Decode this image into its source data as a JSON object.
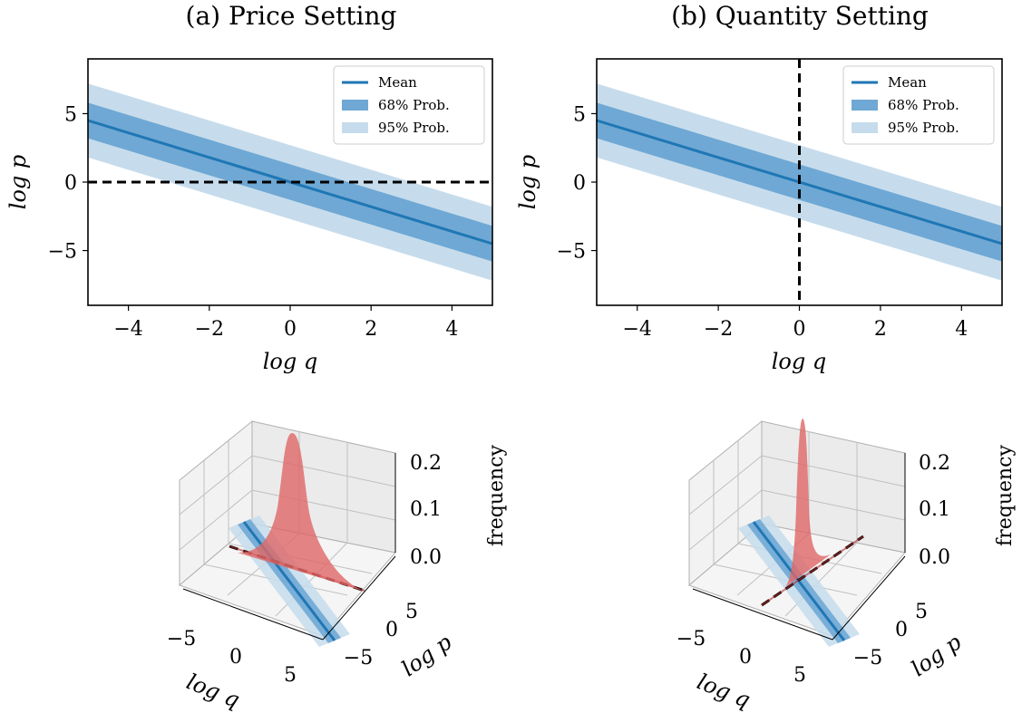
{
  "colors": {
    "mean": "#1f77b4",
    "band68": "#6fa8d4",
    "band95": "#c6dcec",
    "dashed": "#000000",
    "density": "#e06666",
    "pane": "#f2f2f2",
    "grid": "#b0b0b0"
  },
  "chart_data": [
    {
      "type": "area",
      "panel": "a",
      "title": "(a) Price Setting",
      "xlabel": "log q",
      "ylabel": "log p",
      "xlim": [
        -5,
        5
      ],
      "ylim": [
        -9,
        9
      ],
      "xticks": [
        -4,
        -2,
        0,
        2,
        4
      ],
      "yticks": [
        -5,
        0,
        5
      ],
      "tick_labels_x": [
        "−4",
        "−2",
        "0",
        "2",
        "4"
      ],
      "tick_labels_y": [
        "−5",
        "0",
        "5"
      ],
      "grid": false,
      "legend_position": "top-right",
      "series": [
        {
          "name": "Mean",
          "kind": "line",
          "x": [
            -5,
            5
          ],
          "y": [
            4.5,
            -4.5
          ]
        },
        {
          "name": "68% Prob.",
          "kind": "band",
          "x": [
            -5,
            5
          ],
          "lower": [
            3.2,
            -5.8
          ],
          "upper": [
            5.8,
            -3.2
          ]
        },
        {
          "name": "95% Prob.",
          "kind": "band",
          "x": [
            -5,
            5
          ],
          "lower": [
            1.8,
            -7.2
          ],
          "upper": [
            7.2,
            -1.8
          ]
        }
      ],
      "reference_line": {
        "orientation": "horizontal",
        "value": 0,
        "style": "dashed"
      }
    },
    {
      "type": "area",
      "panel": "b",
      "title": "(b) Quantity Setting",
      "xlabel": "log q",
      "ylabel": "log p",
      "xlim": [
        -5,
        5
      ],
      "ylim": [
        -9,
        9
      ],
      "xticks": [
        -4,
        -2,
        0,
        2,
        4
      ],
      "yticks": [
        -5,
        0,
        5
      ],
      "tick_labels_x": [
        "−4",
        "−2",
        "0",
        "2",
        "4"
      ],
      "tick_labels_y": [
        "−5",
        "0",
        "5"
      ],
      "grid": false,
      "legend_position": "top-right",
      "series": [
        {
          "name": "Mean",
          "kind": "line",
          "x": [
            -5,
            5
          ],
          "y": [
            4.5,
            -4.5
          ]
        },
        {
          "name": "68% Prob.",
          "kind": "band",
          "x": [
            -5,
            5
          ],
          "lower": [
            3.2,
            -5.8
          ],
          "upper": [
            5.8,
            -3.2
          ]
        },
        {
          "name": "95% Prob.",
          "kind": "band",
          "x": [
            -5,
            5
          ],
          "lower": [
            1.8,
            -7.2
          ],
          "upper": [
            7.2,
            -1.8
          ]
        }
      ],
      "reference_line": {
        "orientation": "vertical",
        "value": 0,
        "style": "dashed"
      }
    },
    {
      "type": "area",
      "panel": "a-3d",
      "xlabel": "log q",
      "ylabel": "log p",
      "zlabel": "frequency",
      "xticks": [
        -5,
        0,
        5
      ],
      "yticks": [
        -5,
        0,
        5
      ],
      "zticks": [
        0.0,
        0.1,
        0.2
      ],
      "tick_labels_x": [
        "−5",
        "0",
        "5"
      ],
      "tick_labels_y": [
        "−5",
        "0",
        "5"
      ],
      "tick_labels_z": [
        "0.0",
        "0.1",
        "0.2"
      ],
      "density_peak": 0.23,
      "density_center_logq": 0
    },
    {
      "type": "area",
      "panel": "b-3d",
      "xlabel": "log q",
      "ylabel": "log p",
      "zlabel": "frequency",
      "xticks": [
        -5,
        0,
        5
      ],
      "yticks": [
        -5,
        0,
        5
      ],
      "zticks": [
        0.0,
        0.1,
        0.2
      ],
      "tick_labels_x": [
        "−5",
        "0",
        "5"
      ],
      "tick_labels_y": [
        "−5",
        "0",
        "5"
      ],
      "tick_labels_z": [
        "0.0",
        "0.1",
        "0.2"
      ],
      "density_peak": 0.26,
      "density_center_logp": 0
    }
  ]
}
